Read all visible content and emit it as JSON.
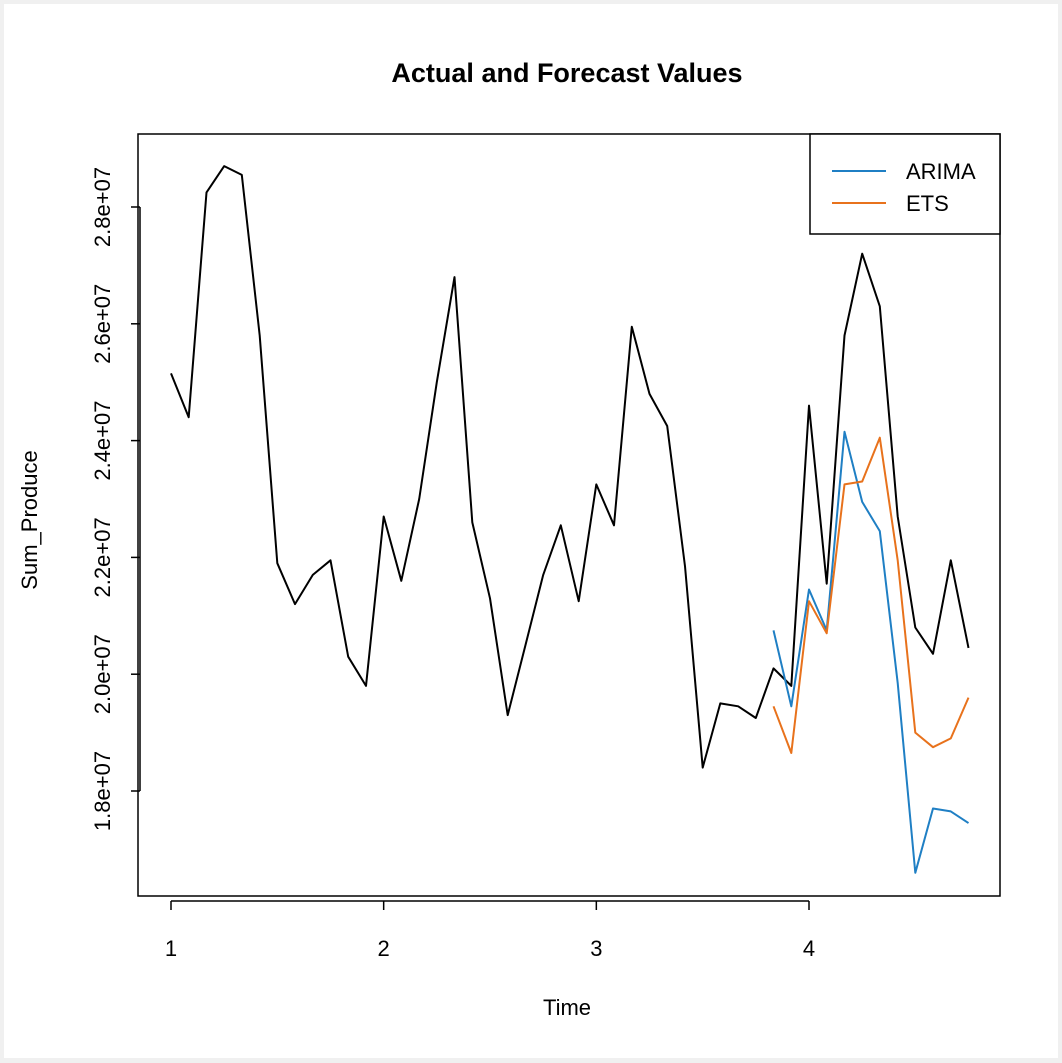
{
  "chart_data": {
    "type": "line",
    "title": "Actual and Forecast Values",
    "xlabel": "Time",
    "ylabel": "Sum_Produce",
    "xlim": [
      1,
      4.75
    ],
    "ylim": [
      15800000,
      29200000
    ],
    "x_ticks": [
      1,
      2,
      3,
      4
    ],
    "x_tick_labels": [
      "1",
      "2",
      "3",
      "4"
    ],
    "y_ticks": [
      18000000,
      20000000,
      22000000,
      24000000,
      26000000,
      28000000
    ],
    "y_tick_labels": [
      "1.8e+07",
      "2.0e+07",
      "2.2e+07",
      "2.4e+07",
      "2.6e+07",
      "2.8e+07"
    ],
    "legend_position": "top-right",
    "grid": false,
    "series": [
      {
        "color": "#000000",
        "x": [
          1,
          1.083,
          1.167,
          1.25,
          1.333,
          1.417,
          1.5,
          1.583,
          1.667,
          1.75,
          1.833,
          1.917,
          2,
          2.083,
          2.167,
          2.25,
          2.333,
          2.417,
          2.5,
          2.583,
          2.667,
          2.75,
          2.833,
          2.917,
          3,
          3.083,
          3.167,
          3.25,
          3.333,
          3.417,
          3.5,
          3.583,
          3.667,
          3.75,
          3.833,
          3.917,
          4,
          4.083,
          4.167,
          4.25,
          4.333,
          4.417,
          4.5,
          4.583,
          4.667,
          4.75
        ],
        "values": [
          25150000,
          24400000,
          28250000,
          28700000,
          28550000,
          25800000,
          21900000,
          21200000,
          21700000,
          21950000,
          20300000,
          19800000,
          22700000,
          21600000,
          23000000,
          25000000,
          26800000,
          22600000,
          21300000,
          19300000,
          20500000,
          21700000,
          22550000,
          21250000,
          23250000,
          22550000,
          25950000,
          24800000,
          24250000,
          21850000,
          18400000,
          19500000,
          19450000,
          19250000,
          20100000,
          19800000,
          24600000,
          21550000,
          25800000,
          27200000,
          26300000,
          22700000,
          20800000,
          20350000,
          21950000,
          20450000
        ]
      },
      {
        "name": "ARIMA",
        "color": "#1f7fc4",
        "x": [
          3.833,
          3.917,
          4,
          4.083,
          4.167,
          4.25,
          4.333,
          4.417,
          4.5,
          4.583,
          4.667,
          4.75
        ],
        "values": [
          20750000,
          19450000,
          21450000,
          20750000,
          24150000,
          22950000,
          22450000,
          19850000,
          16600000,
          17700000,
          17650000,
          17450000
        ]
      },
      {
        "name": "ETS",
        "color": "#e8721c",
        "x": [
          3.833,
          3.917,
          4,
          4.083,
          4.167,
          4.25,
          4.333,
          4.417,
          4.5,
          4.583,
          4.667,
          4.75
        ],
        "values": [
          19450000,
          18650000,
          21250000,
          20700000,
          23250000,
          23300000,
          24050000,
          21950000,
          19000000,
          18750000,
          18900000,
          19600000
        ]
      }
    ]
  }
}
